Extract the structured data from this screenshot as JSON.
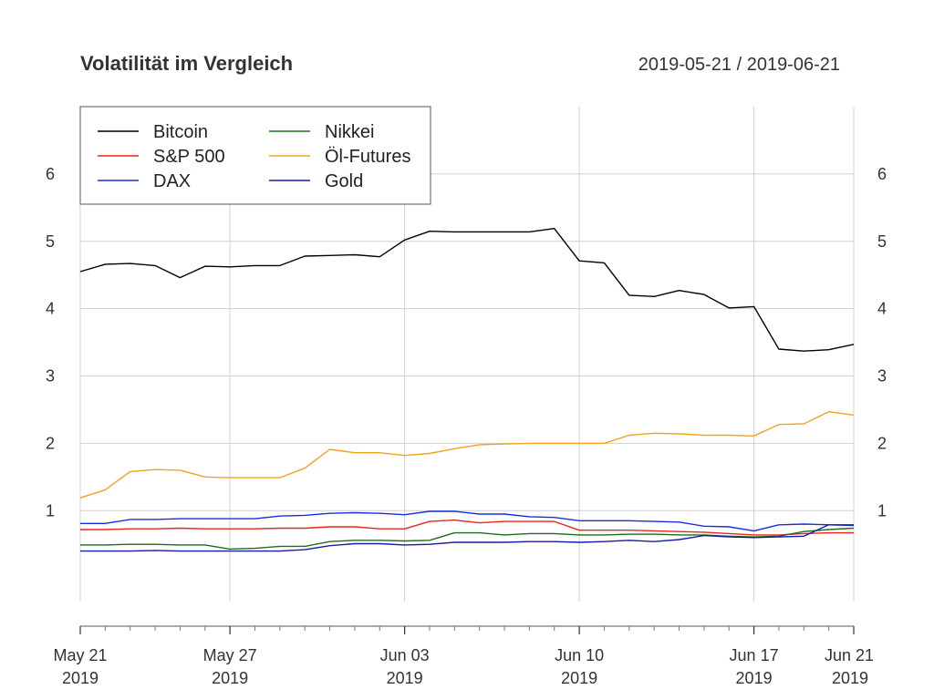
{
  "chart_data": {
    "type": "line",
    "title": "Volatilität im Vergleich",
    "date_range": "2019-05-21 / 2019-06-21",
    "ylim": [
      -0.35,
      7
    ],
    "y_ticks": [
      1,
      2,
      3,
      4,
      5,
      6
    ],
    "x_ticks": [
      {
        "date": "2019-05-21",
        "line1": "May 21",
        "line2": "2019"
      },
      {
        "date": "2019-05-27",
        "line1": "May 27",
        "line2": "2019"
      },
      {
        "date": "2019-06-03",
        "line1": "Jun 03",
        "line2": "2019"
      },
      {
        "date": "2019-06-10",
        "line1": "Jun 10",
        "line2": "2019"
      },
      {
        "date": "2019-06-17",
        "line1": "Jun 17",
        "line2": "2019"
      },
      {
        "date": "2019-06-21",
        "line1": "Jun 21",
        "line2": "2019"
      }
    ],
    "x": [
      "2019-05-21",
      "2019-05-22",
      "2019-05-23",
      "2019-05-24",
      "2019-05-25",
      "2019-05-26",
      "2019-05-27",
      "2019-05-28",
      "2019-05-29",
      "2019-05-30",
      "2019-05-31",
      "2019-06-01",
      "2019-06-02",
      "2019-06-03",
      "2019-06-04",
      "2019-06-05",
      "2019-06-06",
      "2019-06-07",
      "2019-06-08",
      "2019-06-09",
      "2019-06-10",
      "2019-06-11",
      "2019-06-12",
      "2019-06-13",
      "2019-06-14",
      "2019-06-15",
      "2019-06-16",
      "2019-06-17",
      "2019-06-18",
      "2019-06-19",
      "2019-06-20",
      "2019-06-21"
    ],
    "grid": true,
    "legend_position": "top-left",
    "series": [
      {
        "name": "Bitcoin",
        "color": "#000000",
        "values": [
          4.55,
          4.66,
          4.67,
          4.64,
          4.46,
          4.63,
          4.62,
          4.64,
          4.64,
          4.78,
          4.79,
          4.8,
          4.77,
          5.02,
          5.15,
          5.14,
          5.14,
          5.14,
          5.14,
          5.19,
          4.71,
          4.68,
          4.2,
          4.18,
          4.27,
          4.21,
          4.01,
          4.03,
          3.4,
          3.37,
          3.39,
          3.47
        ]
      },
      {
        "name": "S&P 500",
        "color": "#e8261c",
        "values": [
          0.72,
          0.72,
          0.73,
          0.73,
          0.74,
          0.73,
          0.73,
          0.73,
          0.74,
          0.74,
          0.76,
          0.76,
          0.73,
          0.73,
          0.84,
          0.86,
          0.82,
          0.84,
          0.84,
          0.84,
          0.71,
          0.71,
          0.71,
          0.7,
          0.69,
          0.68,
          0.66,
          0.64,
          0.64,
          0.66,
          0.67,
          0.67
        ]
      },
      {
        "name": "DAX",
        "color": "#1a2ee0",
        "values": [
          0.81,
          0.81,
          0.87,
          0.87,
          0.88,
          0.88,
          0.88,
          0.88,
          0.92,
          0.93,
          0.96,
          0.97,
          0.96,
          0.94,
          0.99,
          0.99,
          0.95,
          0.95,
          0.91,
          0.9,
          0.85,
          0.85,
          0.85,
          0.84,
          0.83,
          0.77,
          0.76,
          0.7,
          0.79,
          0.8,
          0.79,
          0.78
        ]
      },
      {
        "name": "Nikkei",
        "color": "#1e6e1a",
        "values": [
          0.49,
          0.49,
          0.5,
          0.5,
          0.49,
          0.49,
          0.43,
          0.44,
          0.47,
          0.47,
          0.54,
          0.56,
          0.56,
          0.55,
          0.56,
          0.67,
          0.67,
          0.64,
          0.66,
          0.66,
          0.64,
          0.64,
          0.65,
          0.65,
          0.64,
          0.64,
          0.62,
          0.61,
          0.62,
          0.69,
          0.72,
          0.74
        ]
      },
      {
        "name": "Öl-Futures",
        "color": "#f2a21e",
        "values": [
          1.19,
          1.31,
          1.58,
          1.61,
          1.6,
          1.5,
          1.49,
          1.49,
          1.49,
          1.63,
          1.91,
          1.86,
          1.86,
          1.82,
          1.85,
          1.92,
          1.98,
          1.99,
          2.0,
          2.0,
          2.0,
          2.0,
          2.12,
          2.15,
          2.14,
          2.12,
          2.12,
          2.11,
          2.28,
          2.29,
          2.47,
          2.42
        ]
      },
      {
        "name": "Gold",
        "color": "#1a1aa8",
        "values": [
          0.4,
          0.4,
          0.4,
          0.41,
          0.4,
          0.4,
          0.4,
          0.4,
          0.4,
          0.42,
          0.48,
          0.51,
          0.51,
          0.49,
          0.5,
          0.53,
          0.53,
          0.53,
          0.54,
          0.54,
          0.53,
          0.54,
          0.56,
          0.54,
          0.57,
          0.63,
          0.61,
          0.6,
          0.61,
          0.62,
          0.79,
          0.79
        ]
      }
    ]
  }
}
